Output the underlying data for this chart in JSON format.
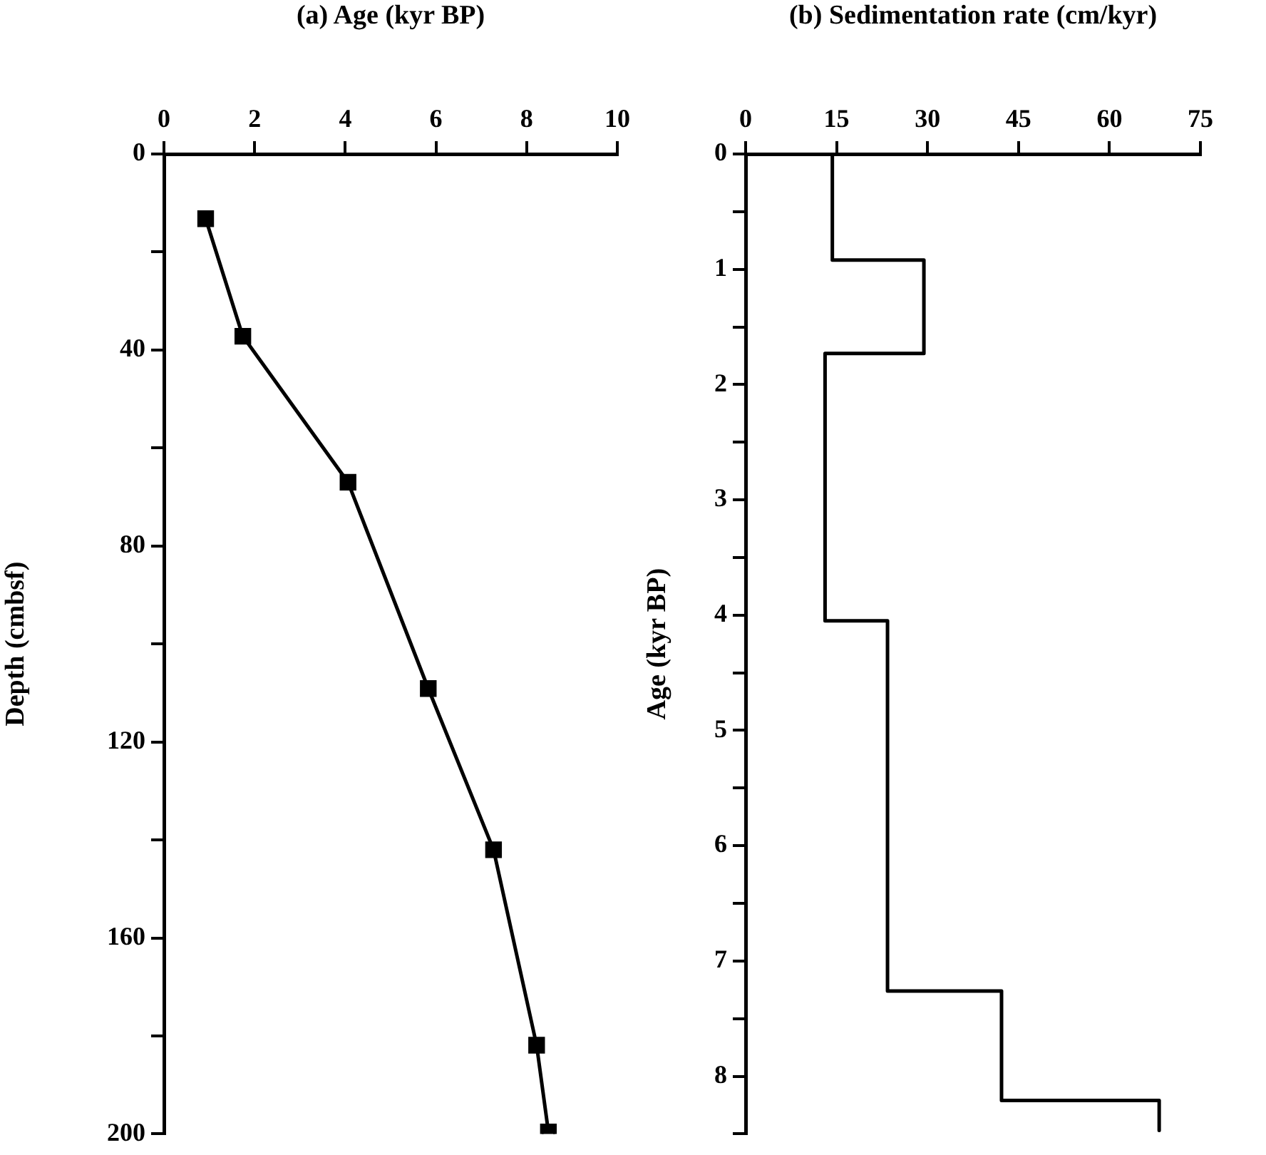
{
  "chart_data": [
    {
      "type": "line",
      "xlabel": "(a) Age (kyr BP)",
      "ylabel": "Depth (cmbsf)",
      "x": [
        0.92,
        1.74,
        4.06,
        5.83,
        7.27,
        8.22,
        8.48
      ],
      "series": [
        {
          "color": "#000000",
          "values": [
            13.2,
            37.2,
            67.0,
            109.1,
            142.0,
            181.9,
            199.6
          ]
        }
      ],
      "xlim": [
        0,
        10
      ],
      "xticks": [
        0,
        2,
        4,
        6,
        8,
        10
      ],
      "ylim": [
        200,
        0
      ],
      "yticks": [
        0,
        {
          "value": 20,
          "label": null
        },
        40,
        {
          "value": 60,
          "label": null
        },
        80,
        {
          "value": 100,
          "label": null
        },
        120,
        {
          "value": 140,
          "label": null
        },
        160,
        {
          "value": 180,
          "label": null
        },
        200
      ],
      "grid": false,
      "legend": false,
      "marker": "square",
      "line_style": "solid"
    },
    {
      "type": "step",
      "orientation": "horizontal",
      "xlabel": "(b) Sedimentation rate (cm/kyr)",
      "ylabel": "Age (kyr BP)",
      "x": [
        0,
        0.92,
        1.73,
        4.05,
        7.26,
        8.21,
        8.47
      ],
      "series": [
        {
          "color": "#000000",
          "values": [
            14.3,
            29.4,
            13.1,
            23.4,
            42.2,
            68.2,
            68.2
          ]
        }
      ],
      "xlim": [
        0,
        75
      ],
      "xticks": [
        0,
        15,
        30,
        45,
        60,
        75
      ],
      "ylim": [
        8.5,
        0
      ],
      "yticks": [
        0,
        {
          "value": 0.5,
          "label": null
        },
        1,
        {
          "value": 1.5,
          "label": null
        },
        2,
        {
          "value": 2.5,
          "label": null
        },
        3,
        {
          "value": 3.5,
          "label": null
        },
        4,
        {
          "value": 4.5,
          "label": null
        },
        5,
        {
          "value": 5.5,
          "label": null
        },
        6,
        {
          "value": 6.5,
          "label": null
        },
        7,
        {
          "value": 7.5,
          "label": null
        },
        8,
        {
          "value": 8.5,
          "label": null
        }
      ],
      "grid": false,
      "legend": false,
      "marker": "none",
      "line_style": "solid"
    }
  ]
}
